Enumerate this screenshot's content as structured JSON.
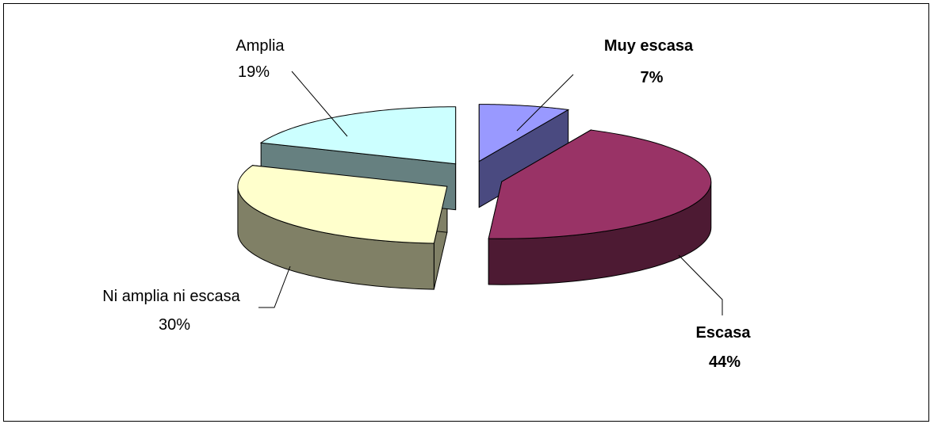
{
  "chart_data": {
    "type": "pie",
    "style": "3d-exploded",
    "slices": [
      {
        "label": "Muy escasa",
        "pct_label": "7%",
        "value": 7,
        "bold": true,
        "top_color": "#9999ff",
        "side_color": "#4a4a80"
      },
      {
        "label": "Escasa",
        "pct_label": "44%",
        "value": 44,
        "bold": true,
        "top_color": "#993366",
        "side_color": "#4d1a33"
      },
      {
        "label": "Ni amplia ni escasa",
        "pct_label": "30%",
        "value": 30,
        "bold": false,
        "top_color": "#ffffcc",
        "side_color": "#808066"
      },
      {
        "label": "Amplia",
        "pct_label": "19%",
        "value": 19,
        "bold": false,
        "top_color": "#ccffff",
        "side_color": "#668080"
      }
    ],
    "legend": "none"
  }
}
